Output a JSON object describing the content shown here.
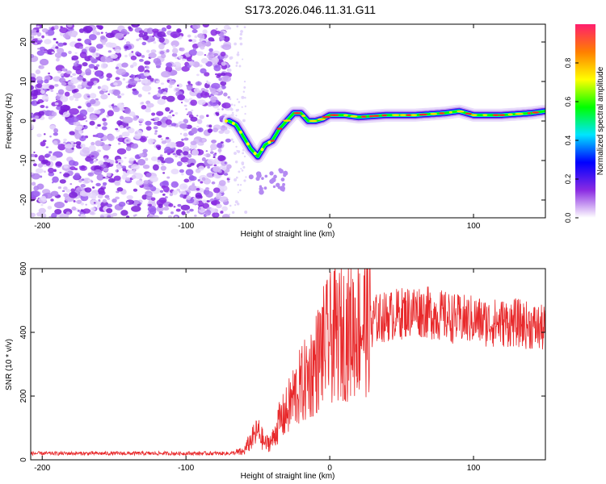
{
  "title": "S173.2026.046.11.31.G11",
  "chart_data": [
    {
      "type": "heatmap",
      "xlabel": "Height of straight line (km)",
      "ylabel": "Frequency (Hz)",
      "xlim": [
        -208,
        150
      ],
      "ylim": [
        -24.5,
        24.5
      ],
      "xticks": [
        -200,
        -100,
        0,
        100
      ],
      "yticks": [
        -20,
        -10,
        0,
        10,
        20
      ],
      "noise_region": [
        -208,
        -70
      ],
      "ridge": {
        "x": [
          -70,
          -65,
          -60,
          -55,
          -50,
          -45,
          -40,
          -35,
          -30,
          -25,
          -20,
          -15,
          -10,
          -5,
          0,
          10,
          20,
          40,
          60,
          80,
          90,
          100,
          120,
          140,
          150
        ],
        "y": [
          0,
          -1,
          -4,
          -7,
          -9,
          -6,
          -5,
          -2,
          0,
          2,
          2,
          0,
          0,
          0.5,
          1.5,
          1.5,
          1,
          1.5,
          1.5,
          2,
          2.5,
          1.5,
          1.5,
          2,
          2.5
        ]
      },
      "colorbar": {
        "label": "Normalized spectral amplitude",
        "range": [
          0,
          1
        ],
        "ticks": [
          "0.0",
          "0.2",
          "0.4",
          "0.6",
          "0.8"
        ],
        "colors": [
          "#ffffff",
          "#8a2be2",
          "#0000ff",
          "#00e5ff",
          "#00ff00",
          "#ffff00",
          "#ff7f00",
          "#ff1e6e"
        ]
      }
    },
    {
      "type": "line",
      "xlabel": "Height of straight line (km)",
      "ylabel": "SNR (10 * v/v)",
      "xlim": [
        -208,
        150
      ],
      "ylim": [
        0,
        600
      ],
      "xticks": [
        -200,
        -100,
        0,
        100
      ],
      "yticks": [
        0,
        200,
        400,
        600
      ],
      "color": "#e8282a",
      "series": [
        {
          "name": "SNR",
          "x": [
            -208,
            -180,
            -150,
            -120,
            -90,
            -70,
            -60,
            -55,
            -50,
            -45,
            -40,
            -35,
            -30,
            -25,
            -20,
            -15,
            -10,
            -5,
            0,
            10,
            20,
            30,
            40,
            50,
            60,
            70,
            80,
            90,
            100,
            110,
            120,
            130,
            140,
            150
          ],
          "y": [
            20,
            20,
            20,
            20,
            20,
            20,
            25,
            60,
            90,
            50,
            60,
            120,
            150,
            200,
            230,
            260,
            300,
            350,
            380,
            400,
            420,
            440,
            450,
            460,
            470,
            460,
            450,
            440,
            440,
            430,
            430,
            430,
            420,
            410
          ]
        }
      ]
    }
  ]
}
